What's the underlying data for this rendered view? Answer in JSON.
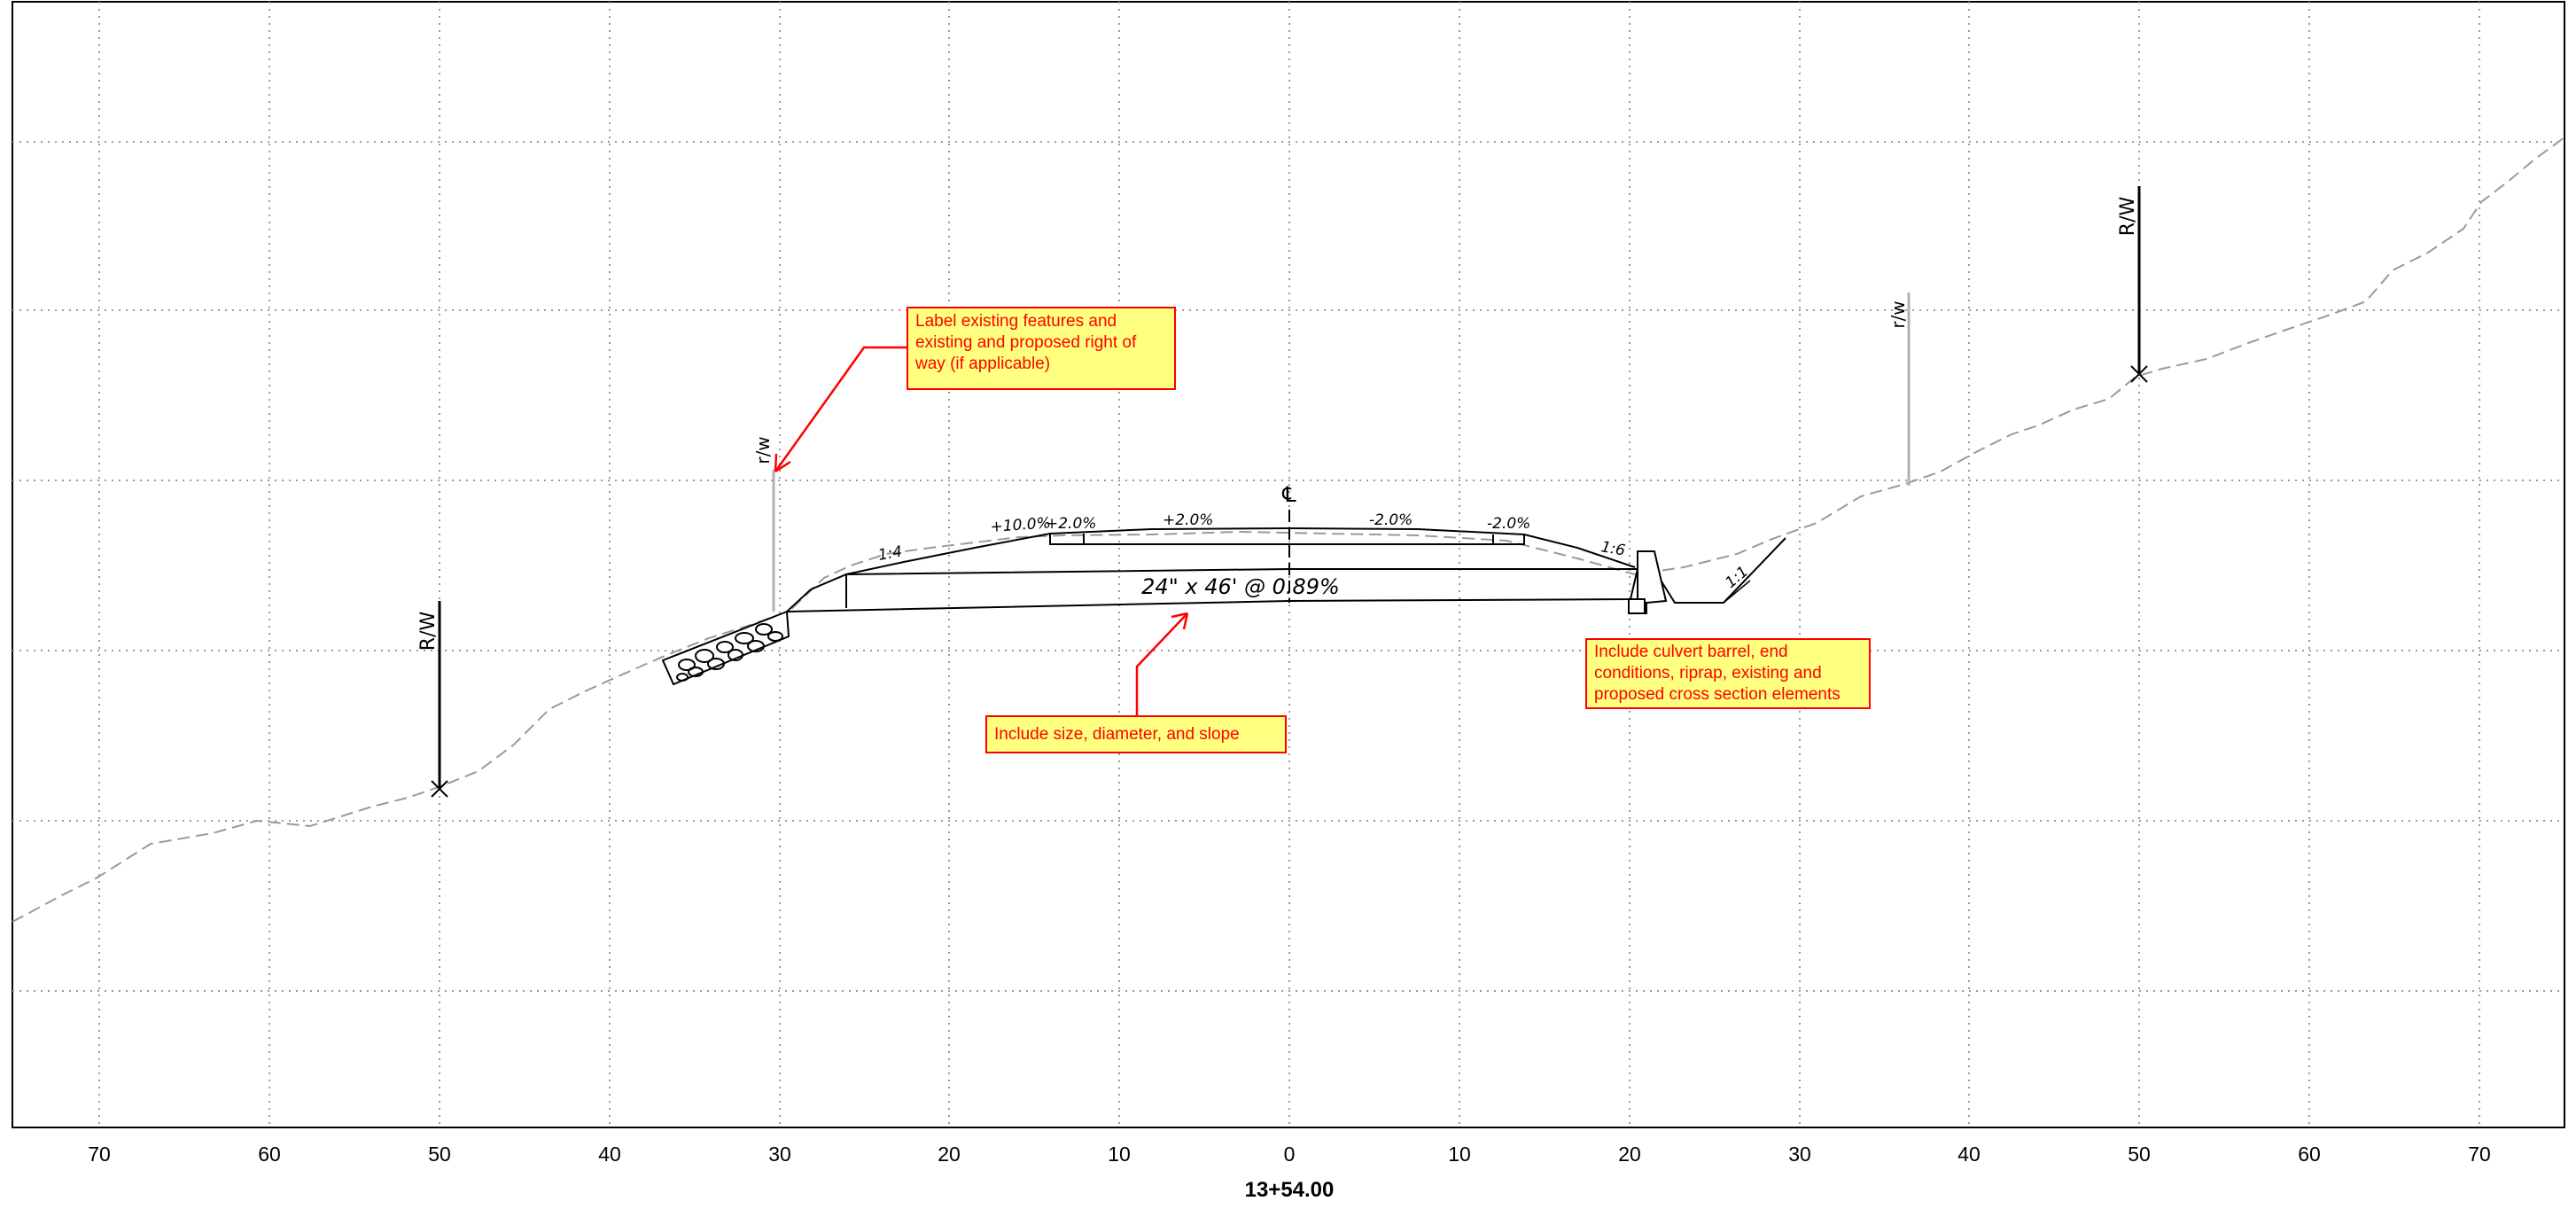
{
  "station_label": "13+54.00",
  "x_axis": {
    "ticks": [
      "70",
      "60",
      "50",
      "40",
      "30",
      "20",
      "10",
      "0",
      "10",
      "20",
      "30",
      "40",
      "50",
      "60",
      "70"
    ],
    "range": [
      -75,
      75
    ]
  },
  "grid": "dotted",
  "labels": {
    "centerline": "℄",
    "rw_left": "R/W",
    "rw_right": "R/W",
    "rw_existing_left": "r/w",
    "rw_existing_right": "r/w",
    "culvert": "24\" x 46' @ 0.89%",
    "slope_left": "1:4",
    "slope_right": "1:6",
    "slope_outlet": "1:1",
    "cross_slopes": [
      "+10.0%",
      "+2.0%",
      "+2.0%",
      "-2.0%",
      "-2.0%"
    ]
  },
  "callouts": {
    "right_of_way": "Label existing features and existing and proposed right of way (if applicable)",
    "size_slope": "Include size, diameter, and slope",
    "culvert_elements": "Include culvert barrel, end conditions, riprap, existing and proposed cross section elements"
  },
  "colors": {
    "callout_fill": "#ffff80",
    "callout_border": "#ff0000",
    "existing_ground": "#9a9a9a",
    "existing_rw": "#b0b0b0"
  }
}
